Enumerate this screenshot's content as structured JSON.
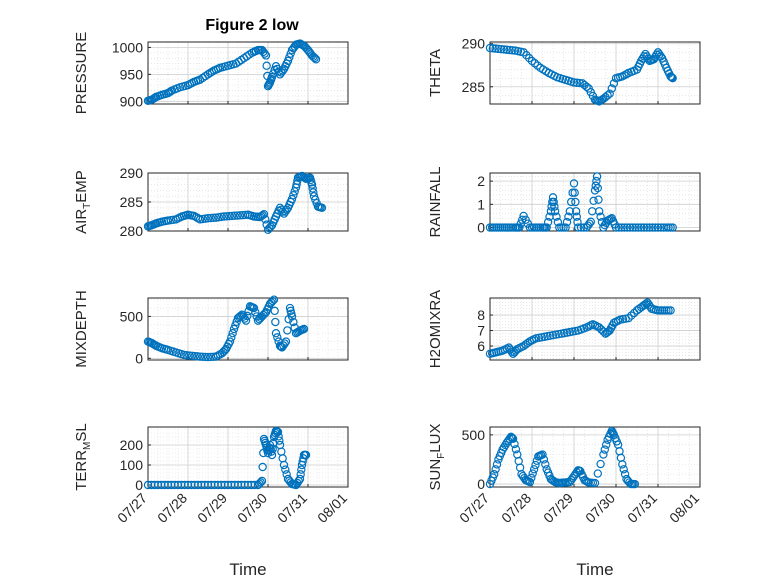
{
  "figure": {
    "title": "Figure 2 low",
    "marker_color": "#0072BD",
    "x_tick_labels": [
      "07/27",
      "07/28",
      "07/29",
      "07/30",
      "07/31",
      "08/01"
    ]
  },
  "chart_data": [
    {
      "type": "scatter",
      "ylabel": {
        "main": "PRESSURE",
        "sub": ""
      },
      "ylim": [
        895,
        1010
      ],
      "yticks": [
        900,
        950,
        1000
      ],
      "xlim": [
        0,
        5
      ],
      "xtick_labels": [],
      "xlabel": "",
      "grid": true,
      "points": [
        [
          0.0,
          901
        ],
        [
          0.1,
          903
        ],
        [
          0.2,
          908
        ],
        [
          0.35,
          912
        ],
        [
          0.5,
          915
        ],
        [
          0.6,
          920
        ],
        [
          0.8,
          926
        ],
        [
          1.0,
          930
        ],
        [
          1.15,
          936
        ],
        [
          1.3,
          940
        ],
        [
          1.5,
          950
        ],
        [
          1.65,
          957
        ],
        [
          1.8,
          962
        ],
        [
          2.0,
          966
        ],
        [
          2.2,
          970
        ],
        [
          2.4,
          980
        ],
        [
          2.6,
          990
        ],
        [
          2.75,
          995
        ],
        [
          2.85,
          995
        ],
        [
          2.95,
          985
        ],
        [
          3.0,
          928
        ],
        [
          3.05,
          935
        ],
        [
          3.1,
          945
        ],
        [
          3.2,
          965
        ],
        [
          3.3,
          950
        ],
        [
          3.4,
          960
        ],
        [
          3.5,
          975
        ],
        [
          3.6,
          995
        ],
        [
          3.7,
          1005
        ],
        [
          3.8,
          1007
        ],
        [
          3.9,
          1003
        ],
        [
          4.0,
          995
        ],
        [
          4.1,
          985
        ],
        [
          4.2,
          978
        ]
      ]
    },
    {
      "type": "scatter",
      "ylabel": {
        "main": "THETA",
        "sub": ""
      },
      "ylim": [
        283,
        290.2
      ],
      "yticks": [
        285,
        290
      ],
      "xlim": [
        0,
        5
      ],
      "xtick_labels": [],
      "xlabel": "",
      "grid": true,
      "points": [
        [
          0.0,
          289.5
        ],
        [
          0.2,
          289.4
        ],
        [
          0.4,
          289.3
        ],
        [
          0.6,
          289.2
        ],
        [
          0.8,
          289.0
        ],
        [
          1.0,
          288.0
        ],
        [
          1.2,
          287.2
        ],
        [
          1.4,
          286.6
        ],
        [
          1.6,
          286.1
        ],
        [
          1.8,
          285.8
        ],
        [
          2.0,
          285.5
        ],
        [
          2.2,
          285.4
        ],
        [
          2.35,
          284.8
        ],
        [
          2.5,
          283.5
        ],
        [
          2.6,
          283.3
        ],
        [
          2.7,
          283.6
        ],
        [
          2.85,
          284.2
        ],
        [
          3.0,
          286.0
        ],
        [
          3.15,
          286.2
        ],
        [
          3.3,
          286.6
        ],
        [
          3.5,
          287.0
        ],
        [
          3.6,
          288.0
        ],
        [
          3.7,
          288.8
        ],
        [
          3.8,
          288.0
        ],
        [
          3.9,
          288.2
        ],
        [
          4.0,
          289.0
        ],
        [
          4.1,
          288.3
        ],
        [
          4.2,
          287.2
        ],
        [
          4.3,
          286.2
        ],
        [
          4.35,
          286.0
        ]
      ]
    },
    {
      "type": "scatter",
      "ylabel": {
        "main": "AIR",
        "sub": "T",
        "tail": "EMP"
      },
      "ylim": [
        280,
        290
      ],
      "yticks": [
        280,
        285,
        290
      ],
      "xlim": [
        0,
        5
      ],
      "xtick_labels": [],
      "xlabel": "",
      "grid": true,
      "points": [
        [
          0.0,
          280.8
        ],
        [
          0.1,
          281.0
        ],
        [
          0.2,
          281.3
        ],
        [
          0.35,
          281.6
        ],
        [
          0.5,
          281.8
        ],
        [
          0.7,
          282.0
        ],
        [
          0.85,
          282.5
        ],
        [
          1.0,
          282.8
        ],
        [
          1.15,
          282.6
        ],
        [
          1.3,
          282.0
        ],
        [
          1.5,
          282.2
        ],
        [
          1.7,
          282.3
        ],
        [
          1.9,
          282.5
        ],
        [
          2.1,
          282.6
        ],
        [
          2.3,
          282.7
        ],
        [
          2.5,
          282.8
        ],
        [
          2.65,
          282.5
        ],
        [
          2.8,
          282.4
        ],
        [
          2.9,
          282.9
        ],
        [
          3.0,
          280.2
        ],
        [
          3.1,
          281.0
        ],
        [
          3.2,
          282.5
        ],
        [
          3.3,
          284.0
        ],
        [
          3.4,
          283.0
        ],
        [
          3.5,
          284.0
        ],
        [
          3.6,
          285.5
        ],
        [
          3.7,
          287.5
        ],
        [
          3.75,
          289.2
        ],
        [
          3.85,
          289.5
        ],
        [
          3.95,
          289.0
        ],
        [
          4.05,
          289.2
        ],
        [
          4.1,
          288.0
        ],
        [
          4.15,
          286.0
        ],
        [
          4.25,
          284.2
        ],
        [
          4.35,
          284.0
        ]
      ]
    },
    {
      "type": "scatter",
      "ylabel": {
        "main": "RAINFALL",
        "sub": ""
      },
      "ylim": [
        -0.15,
        2.35
      ],
      "yticks": [
        0,
        1,
        2
      ],
      "xlim": [
        0,
        5
      ],
      "xtick_labels": [],
      "xlabel": "",
      "grid": true,
      "points": [
        [
          0.0,
          0
        ],
        [
          0.15,
          0
        ],
        [
          0.3,
          0
        ],
        [
          0.45,
          0
        ],
        [
          0.6,
          0
        ],
        [
          0.7,
          0
        ],
        [
          0.8,
          0.5
        ],
        [
          0.95,
          0
        ],
        [
          1.1,
          0
        ],
        [
          1.25,
          0
        ],
        [
          1.35,
          0
        ],
        [
          1.45,
          0.7
        ],
        [
          1.5,
          1.3
        ],
        [
          1.55,
          0.7
        ],
        [
          1.65,
          0
        ],
        [
          1.8,
          0
        ],
        [
          1.9,
          0.7
        ],
        [
          2.0,
          1.9
        ],
        [
          2.05,
          0.7
        ],
        [
          2.1,
          0
        ],
        [
          2.3,
          0
        ],
        [
          2.4,
          0.25
        ],
        [
          2.5,
          1.6
        ],
        [
          2.55,
          2.2
        ],
        [
          2.6,
          0.7
        ],
        [
          2.7,
          0
        ],
        [
          2.8,
          0.3
        ],
        [
          2.9,
          0.4
        ],
        [
          3.0,
          0
        ],
        [
          3.2,
          0
        ],
        [
          3.4,
          0
        ],
        [
          3.6,
          0
        ],
        [
          3.8,
          0
        ],
        [
          4.0,
          0
        ],
        [
          4.2,
          0
        ],
        [
          4.35,
          0
        ]
      ]
    },
    {
      "type": "scatter",
      "ylabel": {
        "main": "MIXDEPTH",
        "sub": ""
      },
      "ylim": [
        -20,
        720
      ],
      "yticks": [
        0,
        500
      ],
      "xlim": [
        0,
        5
      ],
      "xtick_labels": [],
      "xlabel": "",
      "grid": true,
      "points": [
        [
          0.0,
          200
        ],
        [
          0.1,
          180
        ],
        [
          0.2,
          150
        ],
        [
          0.35,
          120
        ],
        [
          0.5,
          100
        ],
        [
          0.7,
          70
        ],
        [
          0.9,
          40
        ],
        [
          1.1,
          30
        ],
        [
          1.3,
          20
        ],
        [
          1.5,
          15
        ],
        [
          1.7,
          20
        ],
        [
          1.85,
          60
        ],
        [
          1.95,
          110
        ],
        [
          2.05,
          200
        ],
        [
          2.15,
          350
        ],
        [
          2.25,
          480
        ],
        [
          2.35,
          520
        ],
        [
          2.45,
          450
        ],
        [
          2.55,
          620
        ],
        [
          2.65,
          600
        ],
        [
          2.75,
          450
        ],
        [
          2.85,
          500
        ],
        [
          2.95,
          550
        ],
        [
          3.05,
          650
        ],
        [
          3.15,
          700
        ],
        [
          3.2,
          300
        ],
        [
          3.3,
          150
        ],
        [
          3.35,
          130
        ],
        [
          3.45,
          200
        ],
        [
          3.55,
          600
        ],
        [
          3.6,
          500
        ],
        [
          3.7,
          300
        ],
        [
          3.8,
          330
        ],
        [
          3.9,
          350
        ]
      ]
    },
    {
      "type": "scatter",
      "ylabel": {
        "main": "H2OMIXRA",
        "sub": ""
      },
      "ylim": [
        5.1,
        9.1
      ],
      "yticks": [
        6,
        7,
        8
      ],
      "xlim": [
        0,
        5
      ],
      "xtick_labels": [],
      "xlabel": "",
      "grid": true,
      "points": [
        [
          0.0,
          5.5
        ],
        [
          0.15,
          5.6
        ],
        [
          0.3,
          5.7
        ],
        [
          0.45,
          5.9
        ],
        [
          0.55,
          5.5
        ],
        [
          0.65,
          5.8
        ],
        [
          0.8,
          6.0
        ],
        [
          0.95,
          6.3
        ],
        [
          1.1,
          6.5
        ],
        [
          1.3,
          6.6
        ],
        [
          1.5,
          6.7
        ],
        [
          1.7,
          6.8
        ],
        [
          1.9,
          6.9
        ],
        [
          2.1,
          7.0
        ],
        [
          2.3,
          7.2
        ],
        [
          2.45,
          7.4
        ],
        [
          2.6,
          7.2
        ],
        [
          2.75,
          6.8
        ],
        [
          2.85,
          7.0
        ],
        [
          2.95,
          7.5
        ],
        [
          3.1,
          7.7
        ],
        [
          3.3,
          7.8
        ],
        [
          3.5,
          8.3
        ],
        [
          3.65,
          8.6
        ],
        [
          3.75,
          8.8
        ],
        [
          3.85,
          8.4
        ],
        [
          4.0,
          8.3
        ],
        [
          4.15,
          8.3
        ],
        [
          4.3,
          8.3
        ]
      ]
    },
    {
      "type": "scatter",
      "ylabel": {
        "main": "TERR",
        "sub": "M",
        "tail": "SL"
      },
      "ylim": [
        -10,
        290
      ],
      "yticks": [
        0,
        100,
        200
      ],
      "xlim": [
        0,
        5
      ],
      "xtick_labels": [
        "07/27",
        "07/28",
        "07/29",
        "07/30",
        "07/31",
        "08/01"
      ],
      "xlabel": "Time",
      "grid": true,
      "points": [
        [
          0.0,
          0
        ],
        [
          0.25,
          0
        ],
        [
          0.5,
          0
        ],
        [
          0.75,
          0
        ],
        [
          1.0,
          0
        ],
        [
          1.25,
          0
        ],
        [
          1.5,
          0
        ],
        [
          1.75,
          0
        ],
        [
          2.0,
          0
        ],
        [
          2.25,
          0
        ],
        [
          2.5,
          0
        ],
        [
          2.75,
          0
        ],
        [
          2.85,
          20
        ],
        [
          2.9,
          230
        ],
        [
          2.95,
          200
        ],
        [
          3.0,
          160
        ],
        [
          3.05,
          200
        ],
        [
          3.1,
          150
        ],
        [
          3.15,
          240
        ],
        [
          3.2,
          270
        ],
        [
          3.25,
          265
        ],
        [
          3.3,
          200
        ],
        [
          3.4,
          100
        ],
        [
          3.5,
          30
        ],
        [
          3.6,
          5
        ],
        [
          3.7,
          0
        ],
        [
          3.8,
          30
        ],
        [
          3.85,
          100
        ],
        [
          3.9,
          150
        ],
        [
          3.95,
          150
        ]
      ]
    },
    {
      "type": "scatter",
      "ylabel": {
        "main": "SUN",
        "sub": "F",
        "tail": "LUX"
      },
      "ylim": [
        -30,
        580
      ],
      "yticks": [
        0,
        500
      ],
      "xlim": [
        0,
        5
      ],
      "xtick_labels": [
        "07/27",
        "07/28",
        "07/29",
        "07/30",
        "07/31",
        "08/01"
      ],
      "xlabel": "Time",
      "grid": true,
      "points": [
        [
          0.0,
          0
        ],
        [
          0.1,
          100
        ],
        [
          0.2,
          250
        ],
        [
          0.3,
          350
        ],
        [
          0.4,
          420
        ],
        [
          0.5,
          480
        ],
        [
          0.55,
          460
        ],
        [
          0.65,
          300
        ],
        [
          0.75,
          100
        ],
        [
          0.85,
          40
        ],
        [
          0.95,
          20
        ],
        [
          1.05,
          150
        ],
        [
          1.15,
          280
        ],
        [
          1.25,
          300
        ],
        [
          1.35,
          150
        ],
        [
          1.45,
          50
        ],
        [
          1.55,
          20
        ],
        [
          1.65,
          10
        ],
        [
          1.75,
          15
        ],
        [
          1.9,
          20
        ],
        [
          2.0,
          80
        ],
        [
          2.1,
          140
        ],
        [
          2.15,
          130
        ],
        [
          2.25,
          40
        ],
        [
          2.35,
          15
        ],
        [
          2.5,
          10
        ],
        [
          2.7,
          300
        ],
        [
          2.8,
          450
        ],
        [
          2.9,
          540
        ],
        [
          2.95,
          500
        ],
        [
          3.05,
          400
        ],
        [
          3.15,
          200
        ],
        [
          3.25,
          50
        ],
        [
          3.35,
          0
        ],
        [
          3.45,
          0
        ]
      ]
    }
  ]
}
